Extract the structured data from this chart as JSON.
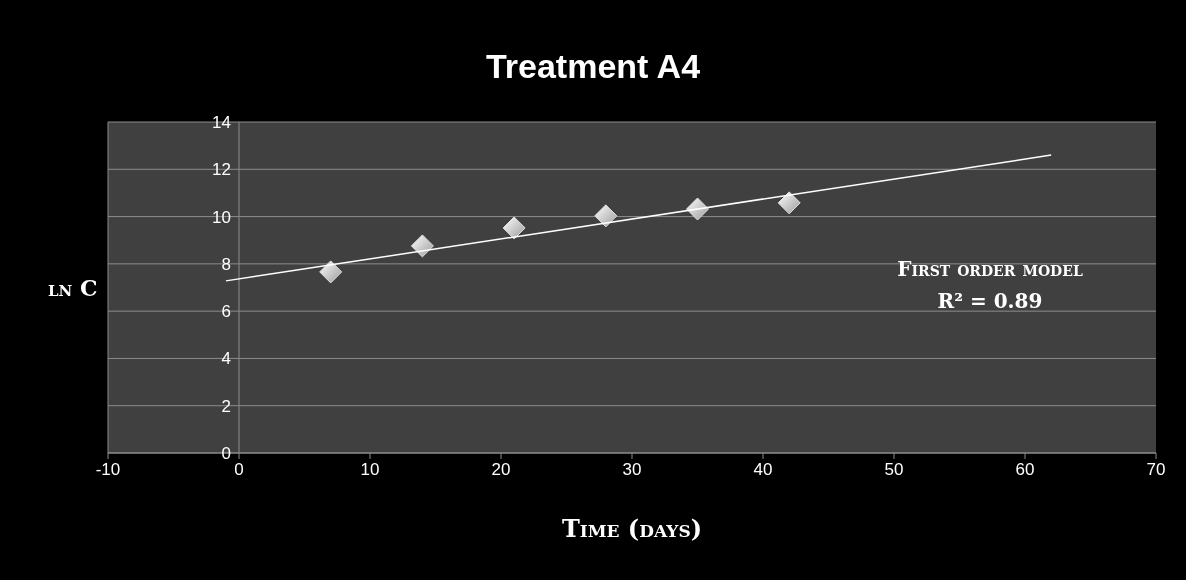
{
  "chart_data": {
    "type": "scatter",
    "title": "Treatment A4",
    "xlabel": "Time (days)",
    "ylabel": "ln C",
    "xlim": [
      -10,
      70
    ],
    "xticks": [
      -10,
      0,
      10,
      20,
      30,
      40,
      50,
      60,
      70
    ],
    "ylim": [
      0,
      14
    ],
    "yticks": [
      0,
      2,
      4,
      6,
      8,
      10,
      12,
      14
    ],
    "grid": "y",
    "series": [
      {
        "color": "#e0e0e0",
        "marker": "diamond",
        "x": [
          7,
          14,
          21,
          28,
          35,
          42
        ],
        "values": [
          7.66,
          8.76,
          9.52,
          10.03,
          10.32,
          10.58
        ]
      },
      {
        "type": "line",
        "color": "#ffffff",
        "marker": "none",
        "x": [
          -1,
          62
        ],
        "values": [
          7.28,
          12.6
        ]
      }
    ],
    "annotations": [
      "First order model",
      "R² = 0.89"
    ]
  }
}
